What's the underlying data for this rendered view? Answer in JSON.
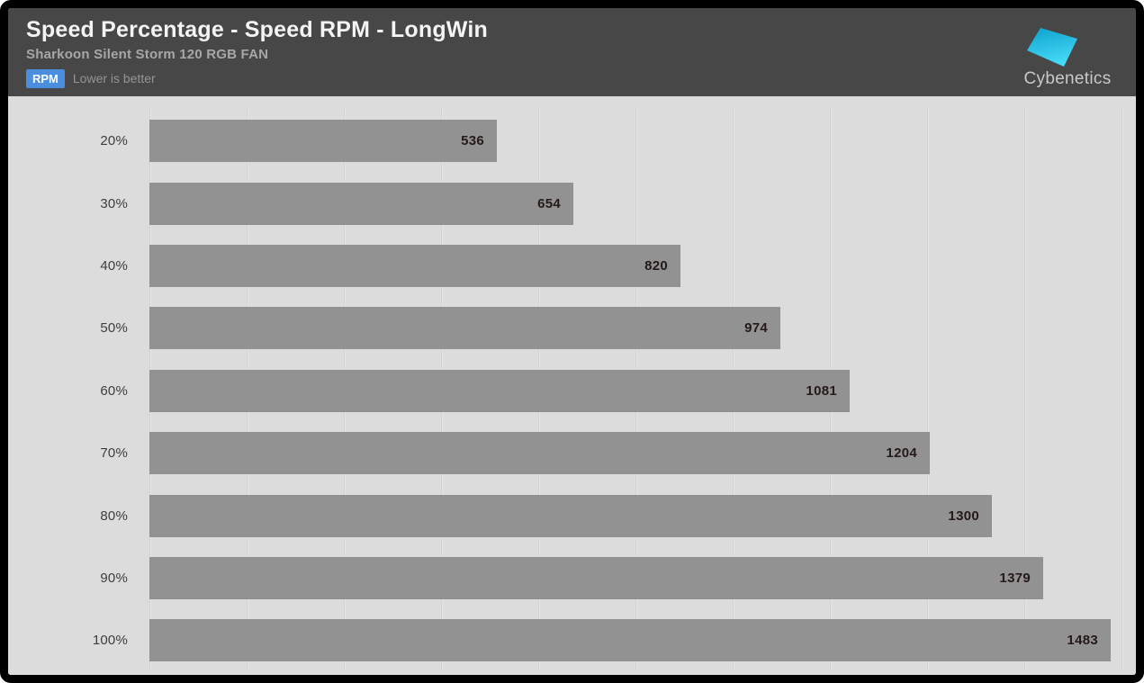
{
  "header": {
    "title": "Speed Percentage - Speed RPM - LongWin",
    "subtitle": "Sharkoon Silent Storm 120 RGB FAN",
    "unit_badge": "RPM",
    "note": "Lower is better",
    "logo_text": "Cybenetics"
  },
  "colors": {
    "header_bg": "#474747",
    "chart_bg": "#dcdcdc",
    "bar_fill": "#929292",
    "badge_bg": "#4a8edd",
    "logo_cyan_top": "#0fa3cf",
    "logo_cyan_bottom": "#45daf6",
    "value_text": "#241a18",
    "gridline": "#d2d2d2"
  },
  "chart_data": {
    "type": "bar",
    "orientation": "horizontal",
    "title": "Speed Percentage - Speed RPM - LongWin",
    "subtitle": "Sharkoon Silent Storm 120 RGB FAN",
    "unit": "RPM",
    "note": "Lower is better",
    "categories": [
      "20%",
      "30%",
      "40%",
      "50%",
      "60%",
      "70%",
      "80%",
      "90%",
      "100%"
    ],
    "values": [
      536,
      654,
      820,
      974,
      1081,
      1204,
      1300,
      1379,
      1483
    ],
    "xlabel": "Speed RPM",
    "ylabel": "Speed Percentage",
    "xlim": [
      0,
      1500
    ],
    "gridline_step": 150,
    "grid": "vertical-only",
    "legend": "none",
    "value_label_position": "inside-end"
  }
}
